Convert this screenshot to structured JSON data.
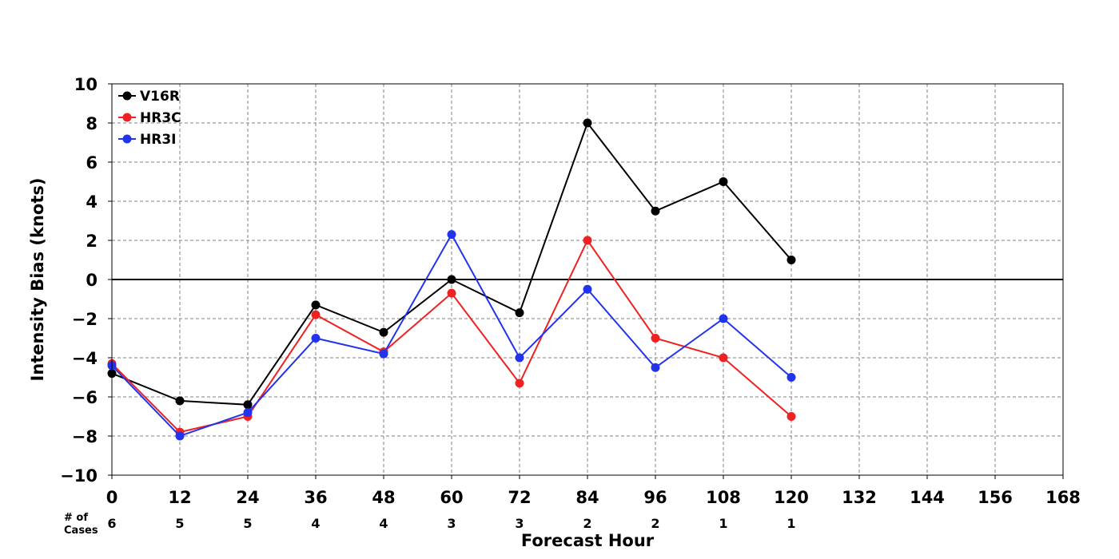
{
  "chart_data": {
    "type": "line",
    "title": "",
    "xlabel": "Forecast Hour",
    "ylabel": "Intensity Bias (knots)",
    "x": [
      0,
      12,
      24,
      36,
      48,
      60,
      72,
      84,
      96,
      108,
      120
    ],
    "xlim": [
      0,
      168
    ],
    "ylim": [
      -10,
      10
    ],
    "x_ticks": [
      "0",
      "12",
      "24",
      "36",
      "48",
      "60",
      "72",
      "84",
      "96",
      "108",
      "120",
      "132",
      "144",
      "156",
      "168"
    ],
    "y_ticks": [
      "10",
      "8",
      "6",
      "4",
      "2",
      "0",
      "−2",
      "−4",
      "−6",
      "−8",
      "−10"
    ],
    "grid": true,
    "zero_line": true,
    "legend_position": "top-left",
    "series": [
      {
        "name": "V16R",
        "color": "#000000",
        "values": [
          -4.8,
          -6.2,
          -6.4,
          -1.3,
          -2.7,
          0.0,
          -1.7,
          8.0,
          3.5,
          5.0,
          1.0
        ]
      },
      {
        "name": "HR3C",
        "color": "#ee2222",
        "values": [
          -4.3,
          -7.8,
          -7.0,
          -1.8,
          -3.7,
          -0.7,
          -5.3,
          2.0,
          -3.0,
          -4.0,
          -7.0
        ]
      },
      {
        "name": "HR3I",
        "color": "#2233ee",
        "values": [
          -4.4,
          -8.0,
          -6.8,
          -3.0,
          -3.8,
          2.3,
          -4.0,
          -0.5,
          -4.5,
          -2.0,
          -5.0
        ]
      }
    ],
    "cases_label": [
      "# of",
      "Cases"
    ],
    "cases": [
      "6",
      "5",
      "5",
      "4",
      "4",
      "3",
      "3",
      "2",
      "2",
      "1",
      "1"
    ]
  }
}
